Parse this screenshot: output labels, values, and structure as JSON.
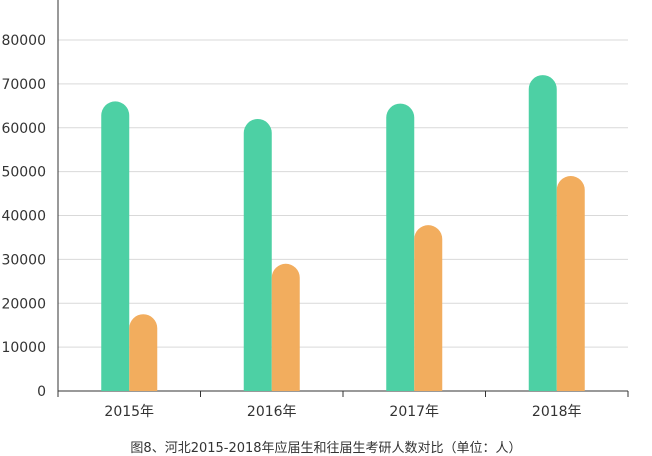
{
  "chart_data": {
    "type": "bar",
    "title": "",
    "caption": "图8、河北2015-2018年应届生和往届生考研人数对比（单位：人）",
    "xlabel": "",
    "ylabel": "",
    "categories": [
      "2015年",
      "2016年",
      "2017年",
      "2018年"
    ],
    "series": [
      {
        "values": [
          66000,
          62000,
          65500,
          72000
        ],
        "color": "#4dd0a4"
      },
      {
        "values": [
          17500,
          29000,
          37800,
          49000
        ],
        "color": "#f2ad5e"
      }
    ],
    "ylim": [
      0,
      80000
    ],
    "yticks": [
      0,
      10000,
      20000,
      30000,
      40000,
      50000,
      60000,
      70000,
      80000
    ],
    "grid": true,
    "legend": "none"
  }
}
